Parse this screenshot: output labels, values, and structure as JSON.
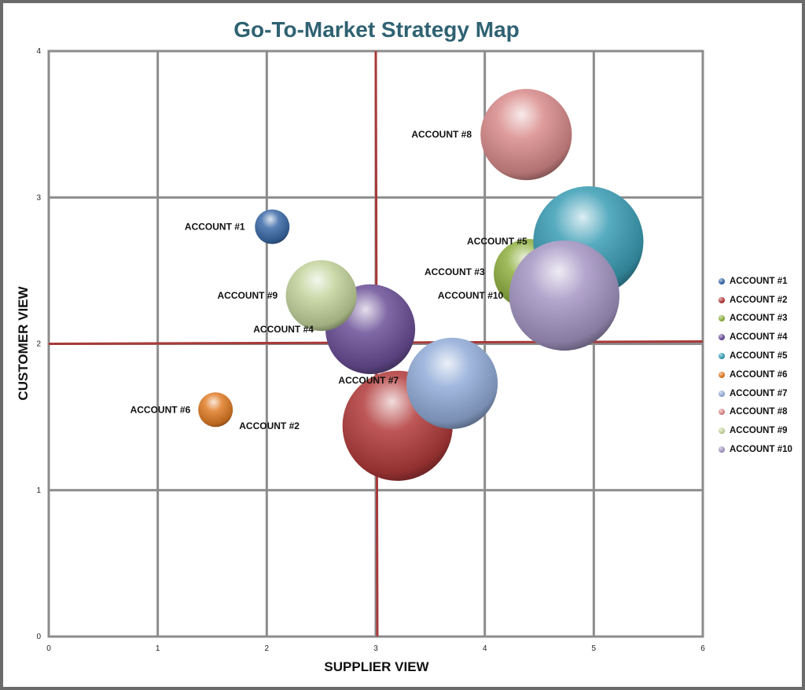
{
  "chart_data": {
    "type": "bubble",
    "title": "Go-To-Market Strategy Map",
    "xlabel": "SUPPLIER VIEW",
    "ylabel": "CUSTOMER VIEW",
    "xlim": [
      0,
      6
    ],
    "ylim": [
      0,
      4
    ],
    "x_ticks": [
      "0",
      "1",
      "2",
      "3",
      "4",
      "5",
      "6"
    ],
    "y_ticks": [
      "0",
      "1",
      "2",
      "3",
      "4"
    ],
    "reference_lines": {
      "x": 3,
      "y": 2
    },
    "grid": true,
    "legend_position": "right",
    "series": [
      {
        "name": "ACCOUNT #1",
        "x": 2.05,
        "y": 2.8,
        "size": 22,
        "color": "#3b6aa8"
      },
      {
        "name": "ACCOUNT #2",
        "x": 3.2,
        "y": 1.44,
        "size": 70,
        "color": "#b23b3b"
      },
      {
        "name": "ACCOUNT #3",
        "x": 4.4,
        "y": 2.48,
        "size": 44,
        "color": "#8fb040"
      },
      {
        "name": "ACCOUNT #4",
        "x": 2.95,
        "y": 2.1,
        "size": 57,
        "color": "#6a4e96"
      },
      {
        "name": "ACCOUNT #5",
        "x": 4.95,
        "y": 2.7,
        "size": 70,
        "color": "#3a9db5"
      },
      {
        "name": "ACCOUNT #6",
        "x": 1.53,
        "y": 1.55,
        "size": 22,
        "color": "#e07b25"
      },
      {
        "name": "ACCOUNT #7",
        "x": 3.7,
        "y": 1.73,
        "size": 58,
        "color": "#92acd8"
      },
      {
        "name": "ACCOUNT #8",
        "x": 4.38,
        "y": 3.43,
        "size": 58,
        "color": "#d98b8b"
      },
      {
        "name": "ACCOUNT #9",
        "x": 2.5,
        "y": 2.33,
        "size": 45,
        "color": "#c3d49c"
      },
      {
        "name": "ACCOUNT #10",
        "x": 4.73,
        "y": 2.33,
        "size": 70,
        "color": "#a596c4"
      }
    ],
    "labels": [
      {
        "text": "ACCOUNT #1",
        "x": 1.8,
        "y": 2.8
      },
      {
        "text": "ACCOUNT #2",
        "x": 2.3,
        "y": 1.44
      },
      {
        "text": "ACCOUNT #3",
        "x": 4.0,
        "y": 2.49
      },
      {
        "text": "ACCOUNT #4",
        "x": 2.43,
        "y": 2.1
      },
      {
        "text": "ACCOUNT #5",
        "x": 4.39,
        "y": 2.7
      },
      {
        "text": "ACCOUNT #6",
        "x": 1.3,
        "y": 1.55
      },
      {
        "text": "ACCOUNT #7",
        "x": 3.21,
        "y": 1.75
      },
      {
        "text": "ACCOUNT #8",
        "x": 3.88,
        "y": 3.43
      },
      {
        "text": "ACCOUNT #9",
        "x": 2.1,
        "y": 2.33
      },
      {
        "text": "ACCOUNT #10",
        "x": 4.17,
        "y": 2.33
      }
    ]
  }
}
